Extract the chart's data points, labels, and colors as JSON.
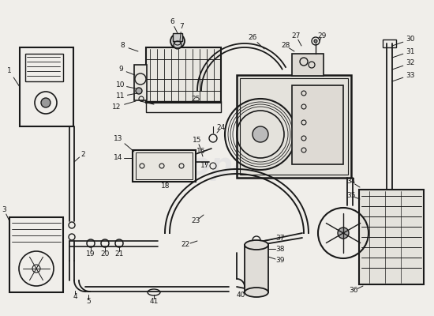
{
  "bg": "#f0eeea",
  "lc": "#1a1a1a",
  "wm_color": "#c8c8d4",
  "wm_alpha": 0.25,
  "fig_w": 5.5,
  "fig_h": 4.0,
  "dpi": 100
}
